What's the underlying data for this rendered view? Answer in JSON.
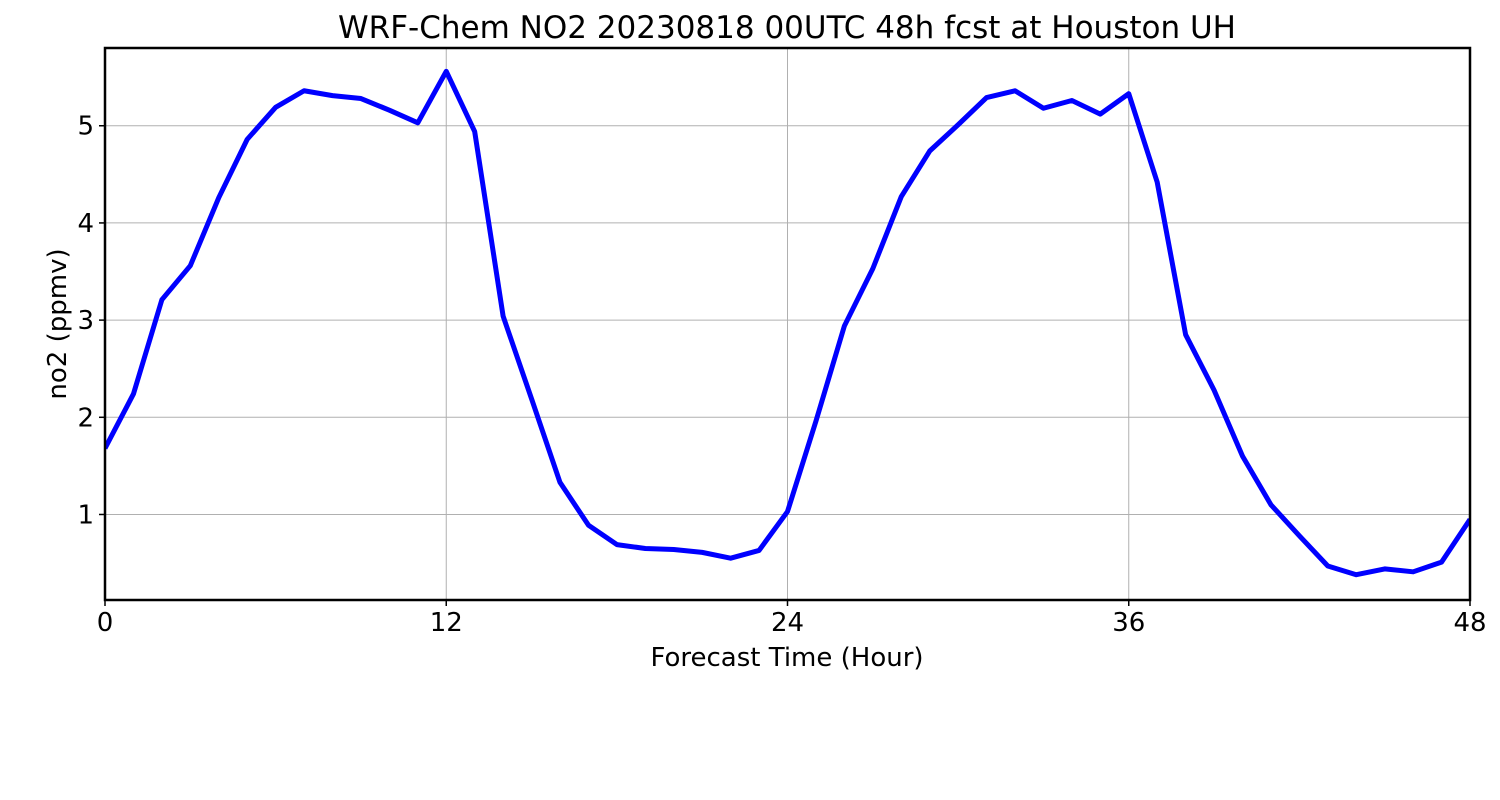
{
  "chart_data": {
    "type": "line",
    "title": "WRF-Chem NO2  20230818 00UTC 48h fcst at Houston UH",
    "xlabel": "Forecast Time (Hour)",
    "ylabel": "no2  (ppmv)",
    "xlim": [
      0,
      48
    ],
    "ylim": [
      0.12,
      5.8
    ],
    "xticks": [
      0,
      12,
      24,
      36,
      48
    ],
    "xtick_labels": [
      "0",
      "12",
      "24",
      "36",
      "48"
    ],
    "yticks": [
      1,
      2,
      3,
      4,
      5
    ],
    "ytick_labels": [
      "1",
      "2",
      "3",
      "4",
      "5"
    ],
    "grid": true,
    "series": [
      {
        "color": "#0000ff",
        "x": [
          0,
          1,
          2,
          3,
          4,
          5,
          6,
          7,
          8,
          9,
          10,
          11,
          12,
          13,
          14,
          15,
          16,
          17,
          18,
          19,
          20,
          21,
          22,
          23,
          24,
          25,
          26,
          27,
          28,
          29,
          30,
          31,
          32,
          33,
          34,
          35,
          36,
          37,
          38,
          39,
          40,
          41,
          42,
          43,
          44,
          45,
          46,
          47,
          48
        ],
        "values": [
          1.68,
          2.24,
          3.21,
          3.56,
          4.26,
          4.86,
          5.19,
          5.36,
          5.31,
          5.28,
          5.16,
          5.03,
          5.56,
          4.94,
          3.04,
          2.19,
          1.33,
          0.89,
          0.69,
          0.65,
          0.64,
          0.61,
          0.55,
          0.63,
          1.03,
          1.96,
          2.94,
          3.53,
          4.27,
          4.74,
          5.01,
          5.29,
          5.36,
          5.18,
          5.26,
          5.12,
          5.33,
          4.42,
          2.85,
          2.28,
          1.6,
          1.1,
          0.78,
          0.47,
          0.38,
          0.44,
          0.41,
          0.51,
          0.95
        ]
      }
    ]
  }
}
